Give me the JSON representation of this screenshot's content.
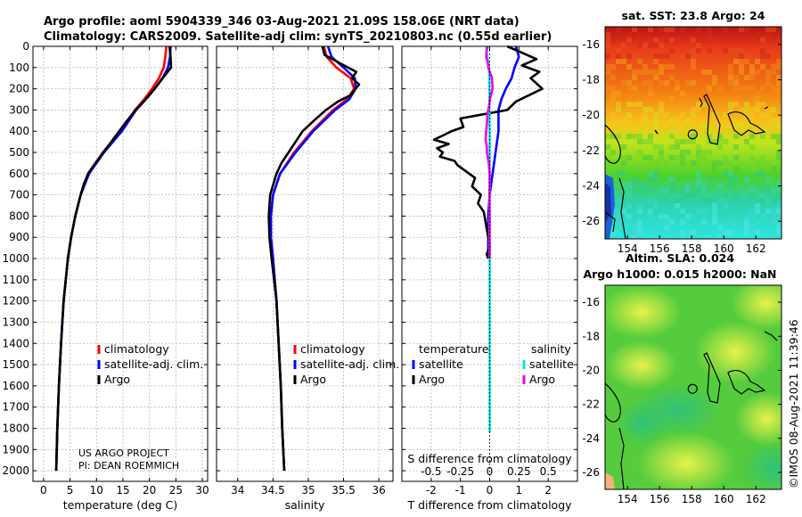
{
  "header": {
    "line1": "Argo profile: aoml 5904339_346 03-Aug-2021 21.09S 158.06E (NRT data)",
    "line2": "Climatology: CARS2009. Satellite-adj clim: synTS_20210803.nc (0.55d earlier)"
  },
  "credit": {
    "line1": "US ARGO PROJECT",
    "line2": "PI: DEAN ROEMMICH"
  },
  "watermark": "©IMOS 08-Aug-2021 11:39:46",
  "colors": {
    "climatology": "#ff0000",
    "satellite": "#0000ff",
    "argo": "#000000",
    "sal_sat": "#00e5ee",
    "sal_argo": "#ee00ee",
    "grid": "#b8b8b8"
  },
  "chart_data": [
    {
      "type": "line",
      "id": "temperature",
      "xlabel": "temperature (deg C)",
      "ylabel": "",
      "xlim": [
        -2,
        31
      ],
      "ylim": [
        2050,
        0
      ],
      "xticks": [
        0,
        5,
        10,
        15,
        20,
        25,
        30
      ],
      "xtick_labels": [
        "0",
        "5",
        "10",
        "15",
        "20",
        "25",
        "30"
      ],
      "yticks": [
        0,
        100,
        200,
        300,
        400,
        500,
        600,
        700,
        800,
        900,
        1000,
        1100,
        1200,
        1300,
        1400,
        1500,
        1600,
        1700,
        1800,
        1900,
        2000
      ],
      "legend": {
        "placement": "lower-right",
        "entries": [
          {
            "label": "climatology",
            "color": "#ff0000"
          },
          {
            "label": "satellite-adj. clim.",
            "color": "#0000ff"
          },
          {
            "label": "Argo",
            "color": "#000000"
          }
        ]
      },
      "series": [
        {
          "name": "climatology",
          "color": "#ff0000",
          "depth": [
            0,
            50,
            100,
            150,
            200,
            250,
            300,
            400,
            500,
            600,
            700,
            800,
            900,
            1000,
            1200,
            1400,
            1600,
            1800,
            2000
          ],
          "values": [
            23.2,
            23.0,
            22.7,
            21.8,
            20.5,
            19.0,
            17.3,
            14.5,
            11.2,
            8.5,
            7.0,
            6.0,
            5.2,
            4.6,
            3.8,
            3.3,
            2.9,
            2.6,
            2.4
          ]
        },
        {
          "name": "satellite-adj. clim.",
          "color": "#0000ff",
          "depth": [
            0,
            50,
            100,
            150,
            200,
            250,
            300,
            400,
            500,
            600,
            700,
            800,
            900,
            1000,
            1200,
            1400,
            1600,
            1800,
            2000
          ],
          "values": [
            24.0,
            23.9,
            23.5,
            22.5,
            21.0,
            19.3,
            17.5,
            14.8,
            11.4,
            8.6,
            7.0,
            6.0,
            5.2,
            4.6,
            3.8,
            3.3,
            2.9,
            2.6,
            2.4
          ]
        },
        {
          "name": "Argo",
          "color": "#000000",
          "depth": [
            0,
            50,
            100,
            150,
            200,
            250,
            300,
            350,
            400,
            450,
            500,
            550,
            600,
            650,
            700,
            800,
            900,
            1000,
            1200,
            1400,
            1600,
            1800,
            2000
          ],
          "values": [
            23.8,
            24.0,
            24.1,
            22.5,
            21.0,
            19.3,
            17.4,
            15.8,
            14.3,
            12.8,
            11.3,
            9.8,
            8.4,
            7.6,
            7.0,
            6.0,
            5.2,
            4.6,
            3.8,
            3.3,
            2.9,
            2.6,
            2.4
          ]
        }
      ]
    },
    {
      "type": "line",
      "id": "salinity",
      "xlabel": "salinity",
      "xlim": [
        33.7,
        36.2
      ],
      "ylim": [
        2050,
        0
      ],
      "xticks": [
        34,
        34.5,
        35,
        35.5,
        36
      ],
      "xtick_labels": [
        "34",
        "34.5",
        "35",
        "35.5",
        "36"
      ],
      "legend": {
        "placement": "lower-right",
        "entries": [
          {
            "label": "climatology",
            "color": "#ff0000"
          },
          {
            "label": "satellite-adj. clim.",
            "color": "#0000ff"
          },
          {
            "label": "Argo",
            "color": "#000000"
          }
        ]
      },
      "series": [
        {
          "name": "climatology",
          "color": "#ff0000",
          "depth": [
            0,
            50,
            100,
            150,
            200,
            250,
            300,
            400,
            500,
            600,
            700,
            800,
            900,
            1000,
            1200,
            1400,
            1600,
            1800,
            2000
          ],
          "values": [
            35.22,
            35.26,
            35.4,
            35.6,
            35.65,
            35.55,
            35.35,
            35.05,
            34.8,
            34.6,
            34.5,
            34.47,
            34.47,
            34.5,
            34.55,
            34.58,
            34.61,
            34.63,
            34.66
          ]
        },
        {
          "name": "satellite-adj. clim.",
          "color": "#0000ff",
          "depth": [
            0,
            50,
            100,
            150,
            200,
            250,
            300,
            400,
            500,
            600,
            700,
            800,
            900,
            1000,
            1200,
            1400,
            1600,
            1800,
            2000
          ],
          "values": [
            35.28,
            35.33,
            35.5,
            35.66,
            35.67,
            35.58,
            35.38,
            35.07,
            34.82,
            34.6,
            34.5,
            34.47,
            34.47,
            34.5,
            34.55,
            34.58,
            34.61,
            34.63,
            34.66
          ]
        },
        {
          "name": "Argo",
          "color": "#000000",
          "depth": [
            0,
            40,
            80,
            120,
            150,
            180,
            200,
            230,
            260,
            300,
            350,
            400,
            450,
            500,
            550,
            600,
            700,
            800,
            900,
            1000,
            1200,
            1400,
            1600,
            1800,
            2000
          ],
          "values": [
            35.2,
            35.23,
            35.45,
            35.68,
            35.62,
            35.72,
            35.67,
            35.6,
            35.42,
            35.25,
            35.08,
            34.92,
            34.82,
            34.72,
            34.62,
            34.55,
            34.46,
            34.44,
            34.45,
            34.48,
            34.55,
            34.58,
            34.61,
            34.63,
            34.66
          ]
        }
      ]
    },
    {
      "type": "line",
      "id": "difference",
      "xlabel": "T difference from climatology",
      "xlabel_top": "S difference from climatology",
      "xlim": [
        -3,
        3
      ],
      "ylim": [
        2050,
        0
      ],
      "xticks": [
        -2,
        -1,
        0,
        1,
        2
      ],
      "xtick_labels": [
        "-2",
        "-1",
        "0",
        "1",
        "2"
      ],
      "s_xtick_labels": [
        "-0.5",
        "-0.25",
        "0",
        "0.25",
        "0.5"
      ],
      "legend": {
        "placement": "lower",
        "temperature_title": "temperature",
        "salinity_title": "salinity",
        "temperature_entries": [
          {
            "label": "satellite",
            "color": "#0000ff"
          },
          {
            "label": "Argo",
            "color": "#000000"
          }
        ],
        "salinity_entries": [
          {
            "label": "satellite",
            "color": "#00e5ee"
          },
          {
            "label": "Argo",
            "color": "#ee00ee"
          }
        ]
      },
      "series": [
        {
          "name": "T satellite",
          "color": "#0000ff",
          "depth": [
            0,
            50,
            100,
            150,
            200,
            250,
            300,
            400,
            500,
            600,
            700,
            800,
            900,
            1000
          ],
          "values": [
            0.9,
            1.0,
            0.85,
            0.75,
            0.55,
            0.4,
            0.3,
            0.3,
            0.2,
            0.1,
            0.0,
            -0.05,
            -0.05,
            -0.05
          ]
        },
        {
          "name": "T Argo",
          "color": "#000000",
          "depth": [
            0,
            30,
            60,
            90,
            120,
            150,
            200,
            260,
            300,
            340,
            380,
            400,
            420,
            440,
            460,
            480,
            500,
            520,
            540,
            560,
            580,
            600,
            620,
            660,
            700,
            740,
            780,
            820,
            860,
            900,
            940,
            980,
            1000
          ],
          "values": [
            0.6,
            1.1,
            1.6,
            1.1,
            1.7,
            1.4,
            1.8,
            0.9,
            0.6,
            -1.0,
            -0.9,
            -1.3,
            -1.6,
            -1.9,
            -1.4,
            -1.8,
            -1.6,
            -1.7,
            -1.2,
            -1.1,
            -0.9,
            -0.7,
            -0.5,
            -0.6,
            -0.3,
            -0.4,
            -0.2,
            -0.15,
            -0.1,
            -0.05,
            0.0,
            -0.1,
            -0.05
          ]
        },
        {
          "name": "S satellite",
          "color": "#00e5ee",
          "depth": [
            0,
            50,
            100,
            200,
            300,
            400,
            500,
            700,
            900,
            1000,
            1200,
            1400,
            1600,
            1700,
            1800,
            1820
          ],
          "values": [
            -0.12,
            -0.08,
            -0.02,
            -0.01,
            -0.01,
            0.0,
            0.0,
            0.0,
            -0.01,
            0.0,
            0.0,
            0.0,
            0.0,
            0.0,
            0.0,
            0.0
          ]
        },
        {
          "name": "S Argo",
          "color": "#ee00ee",
          "depth": [
            0,
            25,
            50,
            80,
            100,
            150,
            200,
            240,
            280,
            320,
            360,
            400,
            440,
            470,
            500,
            550,
            600,
            650,
            700,
            800,
            900,
            1000
          ],
          "values": [
            -0.07,
            -0.11,
            -0.12,
            -0.06,
            -0.05,
            0.08,
            0.1,
            0.02,
            -0.02,
            -0.08,
            -0.09,
            -0.12,
            -0.14,
            -0.1,
            -0.09,
            -0.03,
            0.0,
            0.0,
            -0.01,
            0.0,
            0.0,
            0.0
          ]
        }
      ]
    },
    {
      "type": "heatmap",
      "id": "sst-map",
      "title": "sat. SST: 23.8 Argo: 24",
      "xlim": [
        152.6,
        163.6
      ],
      "ylim": [
        -27,
        -15
      ],
      "xticks": [
        154,
        156,
        158,
        160,
        162
      ],
      "xtick_labels": [
        "154",
        "156",
        "158",
        "160",
        "162"
      ],
      "yticks": [
        -16,
        -18,
        -20,
        -22,
        -24,
        -26
      ],
      "ytick_labels": [
        "-16",
        "-18",
        "-20",
        "-22",
        "-24",
        "-26"
      ],
      "profile_location": [
        158.06,
        -21.09
      ]
    },
    {
      "type": "heatmap",
      "id": "sla-map",
      "title_line1": "Altim. SLA: 0.024",
      "title_line2": "Argo h1000: 0.015 h2000: NaN",
      "xlim": [
        152.6,
        163.6
      ],
      "ylim": [
        -27,
        -15
      ],
      "xticks": [
        154,
        156,
        158,
        160,
        162
      ],
      "xtick_labels": [
        "154",
        "156",
        "158",
        "160",
        "162"
      ],
      "yticks": [
        -16,
        -18,
        -20,
        -22,
        -24,
        -26
      ],
      "ytick_labels": [
        "-16",
        "-18",
        "-20",
        "-22",
        "-24",
        "-26"
      ],
      "profile_location": [
        158.06,
        -21.09
      ]
    }
  ]
}
